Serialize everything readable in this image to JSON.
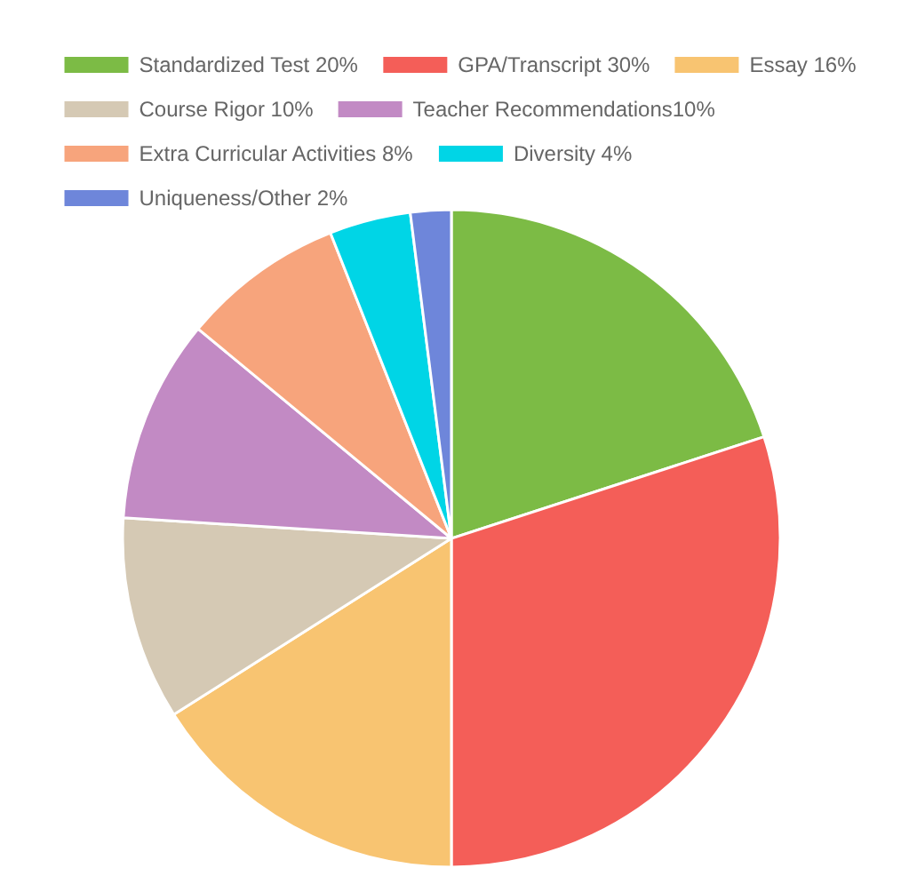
{
  "chart_data": {
    "type": "pie",
    "categories": [
      "Standardized Test 20%",
      "GPA/Transcript 30%",
      "Essay 16%",
      "Course Rigor 10%",
      "Teacher Recommendations10%",
      "Extra Curricular Activities 8%",
      "Diversity 4%",
      "Uniqueness/Other 2%"
    ],
    "values": [
      20,
      30,
      16,
      10,
      10,
      8,
      4,
      2
    ],
    "colors": [
      "#7cbb45",
      "#f45e58",
      "#f8c471",
      "#d5c9b4",
      "#c28ac4",
      "#f7a47c",
      "#00d5e6",
      "#6e86da"
    ],
    "legend": "top"
  }
}
